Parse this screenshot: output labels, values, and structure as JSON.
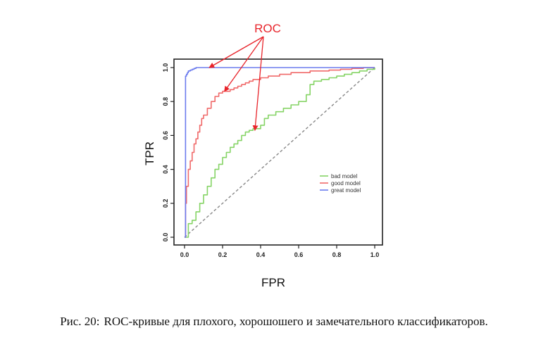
{
  "caption": {
    "prefix": "Рис. 20:",
    "text": "ROC-кривые для плохого, хорошошего и замечательного классификаторов."
  },
  "chart_data": {
    "type": "line",
    "title": "",
    "xlabel": "FPR",
    "ylabel": "TPR",
    "xlim": [
      0,
      1
    ],
    "ylim": [
      0,
      1
    ],
    "xticks": [
      0.0,
      0.2,
      0.4,
      0.6,
      0.8,
      1.0
    ],
    "yticks": [
      0.0,
      0.2,
      0.4,
      0.6,
      0.8,
      1.0
    ],
    "tick_labels": [
      "0.0",
      "0.2",
      "0.4",
      "0.6",
      "0.8",
      "1.0"
    ],
    "grid": false,
    "legend_position": "right",
    "annotation": "ROC",
    "annotation_color": "#e8232a",
    "annotation_targets": [
      {
        "x": 0.13,
        "y": 1.0
      },
      {
        "x": 0.21,
        "y": 0.86
      },
      {
        "x": 0.37,
        "y": 0.63
      }
    ],
    "diagonal": {
      "x": [
        0,
        1
      ],
      "y": [
        0,
        1
      ],
      "color": "#888888",
      "style": "dashed"
    },
    "series": [
      {
        "name": "bad model",
        "color": "#86d466",
        "x": [
          0,
          0.02,
          0.04,
          0.06,
          0.08,
          0.1,
          0.12,
          0.14,
          0.16,
          0.18,
          0.2,
          0.22,
          0.24,
          0.26,
          0.28,
          0.3,
          0.32,
          0.34,
          0.36,
          0.38,
          0.4,
          0.42,
          0.44,
          0.48,
          0.52,
          0.56,
          0.6,
          0.64,
          0.66,
          0.68,
          0.72,
          0.76,
          0.8,
          0.84,
          0.88,
          0.92,
          0.96,
          1.0
        ],
        "y": [
          0,
          0.08,
          0.1,
          0.15,
          0.2,
          0.25,
          0.3,
          0.35,
          0.4,
          0.43,
          0.47,
          0.5,
          0.53,
          0.55,
          0.57,
          0.6,
          0.62,
          0.63,
          0.64,
          0.64,
          0.66,
          0.7,
          0.72,
          0.74,
          0.76,
          0.78,
          0.8,
          0.84,
          0.9,
          0.92,
          0.93,
          0.94,
          0.95,
          0.96,
          0.97,
          0.98,
          0.99,
          1.0
        ]
      },
      {
        "name": "good model",
        "color": "#f06a6a",
        "x": [
          0,
          0.005,
          0.01,
          0.02,
          0.03,
          0.04,
          0.05,
          0.06,
          0.07,
          0.08,
          0.09,
          0.1,
          0.12,
          0.14,
          0.16,
          0.18,
          0.2,
          0.22,
          0.24,
          0.26,
          0.28,
          0.3,
          0.32,
          0.34,
          0.36,
          0.4,
          0.44,
          0.5,
          0.56,
          0.6,
          0.66,
          0.7,
          0.76,
          0.82,
          0.88,
          0.94,
          1.0
        ],
        "y": [
          0,
          0.2,
          0.3,
          0.4,
          0.45,
          0.5,
          0.55,
          0.58,
          0.62,
          0.66,
          0.7,
          0.72,
          0.76,
          0.8,
          0.83,
          0.85,
          0.86,
          0.86,
          0.87,
          0.88,
          0.89,
          0.9,
          0.91,
          0.92,
          0.93,
          0.94,
          0.95,
          0.96,
          0.97,
          0.97,
          0.98,
          0.98,
          0.985,
          0.99,
          0.995,
          1.0,
          1.0
        ]
      },
      {
        "name": "great model",
        "color": "#6b7bee",
        "x": [
          0,
          0.005,
          0.01,
          0.015,
          0.02,
          0.03,
          0.04,
          0.05,
          0.06,
          0.07,
          0.08,
          0.1,
          0.2,
          0.4,
          0.6,
          0.8,
          1.0
        ],
        "y": [
          0,
          0.95,
          0.96,
          0.97,
          0.98,
          0.985,
          0.99,
          0.995,
          1.0,
          1.0,
          1.0,
          1.0,
          1.0,
          1.0,
          1.0,
          1.0,
          1.0
        ]
      }
    ]
  }
}
